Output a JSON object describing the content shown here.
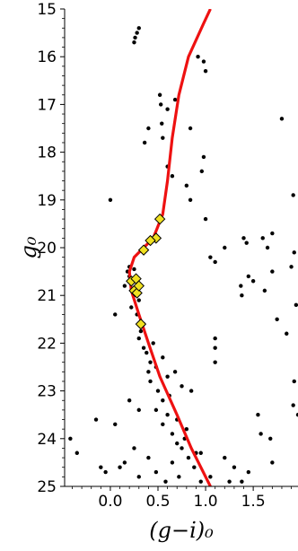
{
  "chart_data": {
    "type": "scatter",
    "xlabel": "(g−i)₀",
    "ylabel": "g₀",
    "xlim": [
      -0.48,
      1.97
    ],
    "ylim": [
      25,
      15
    ],
    "y_inverted": true,
    "grid": false,
    "x_ticks": [
      {
        "value": 0.0,
        "label": "0.0"
      },
      {
        "value": 0.5,
        "label": "0.5"
      },
      {
        "value": 1.0,
        "label": "1.0"
      },
      {
        "value": 1.5,
        "label": "1.5"
      }
    ],
    "y_ticks": [
      {
        "value": 15,
        "label": "15"
      },
      {
        "value": 16,
        "label": "16"
      },
      {
        "value": 17,
        "label": "17"
      },
      {
        "value": 18,
        "label": "18"
      },
      {
        "value": 19,
        "label": "19"
      },
      {
        "value": 20,
        "label": "20"
      },
      {
        "value": 21,
        "label": "21"
      },
      {
        "value": 22,
        "label": "22"
      },
      {
        "value": 23,
        "label": "23"
      },
      {
        "value": 24,
        "label": "24"
      },
      {
        "value": 25,
        "label": "25"
      }
    ],
    "series": [
      {
        "kind": "points",
        "marker": "circle",
        "color": "#000000",
        "points": [
          [
            0.3,
            15.4
          ],
          [
            0.26,
            15.6
          ],
          [
            0.25,
            15.7
          ],
          [
            0.28,
            15.5
          ],
          [
            0.52,
            16.8
          ],
          [
            0.68,
            16.9
          ],
          [
            0.54,
            17.4
          ],
          [
            0.53,
            17.0
          ],
          [
            0.6,
            17.1
          ],
          [
            0.4,
            17.5
          ],
          [
            0.55,
            17.7
          ],
          [
            0.84,
            17.5
          ],
          [
            1.0,
            16.3
          ],
          [
            0.98,
            16.1
          ],
          [
            0.92,
            16.0
          ],
          [
            1.8,
            17.3
          ],
          [
            0.36,
            17.8
          ],
          [
            0.6,
            18.3
          ],
          [
            0.65,
            18.5
          ],
          [
            0.96,
            18.4
          ],
          [
            0.98,
            18.1
          ],
          [
            0.8,
            18.7
          ],
          [
            0.84,
            19.0
          ],
          [
            1.0,
            19.4
          ],
          [
            0.0,
            19.0
          ],
          [
            1.92,
            18.9
          ],
          [
            1.2,
            20.0
          ],
          [
            1.43,
            19.9
          ],
          [
            1.6,
            19.8
          ],
          [
            1.4,
            19.8
          ],
          [
            1.7,
            19.7
          ],
          [
            1.65,
            20.0
          ],
          [
            1.93,
            20.1
          ],
          [
            1.1,
            20.3
          ],
          [
            1.05,
            20.2
          ],
          [
            1.7,
            20.5
          ],
          [
            1.9,
            20.4
          ],
          [
            1.45,
            20.6
          ],
          [
            1.62,
            20.9
          ],
          [
            1.37,
            20.8
          ],
          [
            1.5,
            20.7
          ],
          [
            1.38,
            21.0
          ],
          [
            1.95,
            21.2
          ],
          [
            1.75,
            21.5
          ],
          [
            0.05,
            21.4
          ],
          [
            1.1,
            22.1
          ],
          [
            1.1,
            21.9
          ],
          [
            1.1,
            22.4
          ],
          [
            1.85,
            21.8
          ],
          [
            1.93,
            22.8
          ],
          [
            1.92,
            23.3
          ],
          [
            1.97,
            23.5
          ],
          [
            1.55,
            23.5
          ],
          [
            1.58,
            23.9
          ],
          [
            1.68,
            24.0
          ],
          [
            1.7,
            24.5
          ],
          [
            1.45,
            24.7
          ],
          [
            1.2,
            24.4
          ],
          [
            1.3,
            24.6
          ],
          [
            1.38,
            24.9
          ],
          [
            1.25,
            24.9
          ],
          [
            0.2,
            20.4
          ],
          [
            0.18,
            20.5
          ],
          [
            0.2,
            20.6
          ],
          [
            0.25,
            20.45
          ],
          [
            0.15,
            20.8
          ],
          [
            0.25,
            21.0
          ],
          [
            0.3,
            21.1
          ],
          [
            0.22,
            21.25
          ],
          [
            0.28,
            21.4
          ],
          [
            0.35,
            21.6
          ],
          [
            0.32,
            21.75
          ],
          [
            0.3,
            21.9
          ],
          [
            0.35,
            22.1
          ],
          [
            0.38,
            22.2
          ],
          [
            0.42,
            22.4
          ],
          [
            0.4,
            22.6
          ],
          [
            0.48,
            22.5
          ],
          [
            0.42,
            22.8
          ],
          [
            0.5,
            23.0
          ],
          [
            0.55,
            23.2
          ],
          [
            0.48,
            23.4
          ],
          [
            0.6,
            23.5
          ],
          [
            0.55,
            23.7
          ],
          [
            0.65,
            23.9
          ],
          [
            0.7,
            24.1
          ],
          [
            0.75,
            24.2
          ],
          [
            0.78,
            24.0
          ],
          [
            0.82,
            24.4
          ],
          [
            0.88,
            24.6
          ],
          [
            0.95,
            24.9
          ],
          [
            0.72,
            24.8
          ],
          [
            0.58,
            24.9
          ],
          [
            0.48,
            24.7
          ],
          [
            0.3,
            24.8
          ],
          [
            0.1,
            24.6
          ],
          [
            -0.05,
            24.7
          ],
          [
            -0.1,
            24.6
          ],
          [
            -0.35,
            24.3
          ],
          [
            -0.42,
            24.0
          ],
          [
            -0.15,
            23.6
          ],
          [
            0.05,
            23.7
          ],
          [
            0.2,
            23.2
          ],
          [
            0.3,
            23.4
          ],
          [
            0.45,
            22.0
          ],
          [
            0.55,
            22.3
          ],
          [
            0.6,
            22.7
          ],
          [
            0.7,
            23.6
          ],
          [
            0.85,
            23.0
          ],
          [
            0.9,
            24.3
          ],
          [
            0.65,
            24.5
          ],
          [
            0.4,
            24.4
          ],
          [
            0.25,
            24.2
          ],
          [
            0.15,
            24.5
          ],
          [
            1.05,
            24.8
          ],
          [
            0.95,
            24.3
          ],
          [
            0.8,
            23.8
          ],
          [
            0.75,
            22.9
          ],
          [
            0.68,
            22.6
          ],
          [
            0.62,
            23.1
          ]
        ]
      },
      {
        "kind": "points",
        "marker": "diamond",
        "color": "#f0e020",
        "edge": "#000000",
        "points": [
          [
            0.52,
            19.4
          ],
          [
            0.48,
            19.8
          ],
          [
            0.42,
            19.85
          ],
          [
            0.35,
            20.05
          ],
          [
            0.22,
            20.7
          ],
          [
            0.27,
            20.65
          ],
          [
            0.25,
            20.9
          ],
          [
            0.28,
            20.95
          ],
          [
            0.3,
            20.8
          ],
          [
            0.32,
            21.6
          ]
        ]
      },
      {
        "kind": "line",
        "color": "#ee1111",
        "points": [
          [
            1.05,
            25.0
          ],
          [
            0.85,
            24.2
          ],
          [
            0.7,
            23.5
          ],
          [
            0.52,
            22.7
          ],
          [
            0.4,
            22.0
          ],
          [
            0.3,
            21.4
          ],
          [
            0.22,
            20.9
          ],
          [
            0.2,
            20.5
          ],
          [
            0.25,
            20.2
          ],
          [
            0.35,
            20.0
          ],
          [
            0.45,
            19.8
          ],
          [
            0.55,
            19.3
          ],
          [
            0.6,
            18.6
          ],
          [
            0.65,
            17.7
          ],
          [
            0.72,
            16.8
          ],
          [
            0.82,
            16.0
          ],
          [
            0.98,
            15.3
          ],
          [
            1.05,
            15.0
          ]
        ]
      }
    ]
  }
}
